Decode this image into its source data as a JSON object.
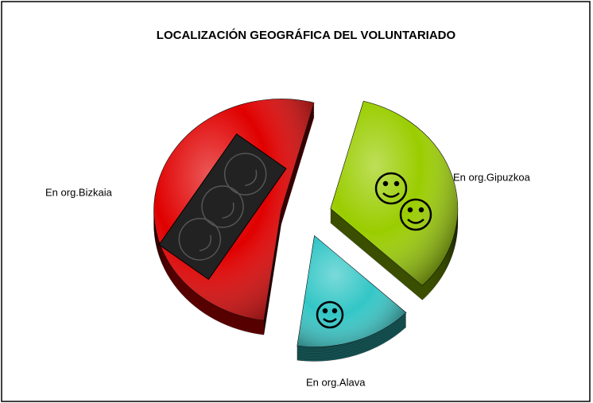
{
  "chart_data": {
    "type": "pie",
    "title": "LOCALIZACIÓN GEOGRÁFICA DEL VOLUNTARIADO",
    "categories": [
      "En org.Gipuzkoa",
      "En org.Alava",
      "En org.Bizkaia"
    ],
    "values": [
      33,
      15,
      52
    ],
    "colors": [
      "#9acd00",
      "#33c6c6",
      "#e00000"
    ]
  }
}
